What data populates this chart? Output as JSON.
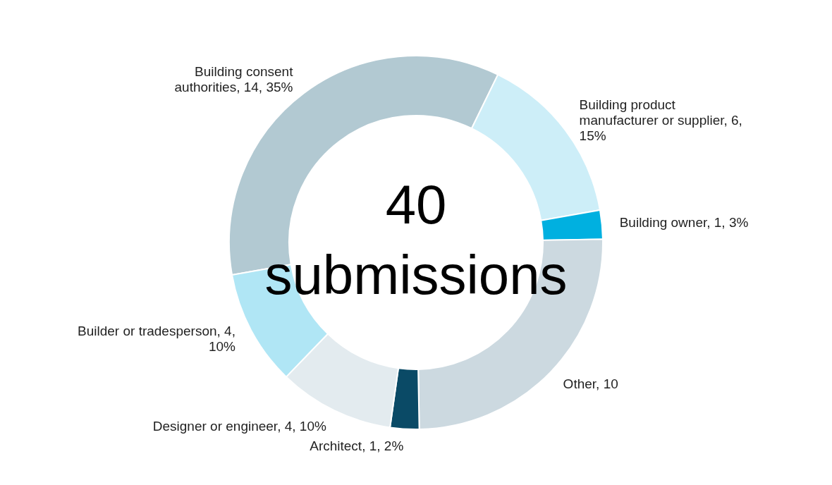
{
  "chart_data": {
    "type": "donut",
    "categories": [
      "Building consent authorities",
      "Building product manufacturer or supplier",
      "Building owner",
      "Other",
      "Architect",
      "Designer or engineer",
      "Builder or tradesperson"
    ],
    "values": [
      14,
      6,
      1,
      10,
      1,
      4,
      4
    ],
    "colors": [
      "#b2c9d2",
      "#cdeef8",
      "#00b0e0",
      "#ccd9e0",
      "#0a4a66",
      "#e3ebef",
      "#b0e6f5"
    ],
    "value_labels": [
      "14, 35%",
      "6, 15%",
      "1, 3%",
      "10",
      "1, 2%",
      "4, 10%",
      "4, 10%"
    ],
    "annotations": [
      "40",
      "submissions"
    ]
  }
}
